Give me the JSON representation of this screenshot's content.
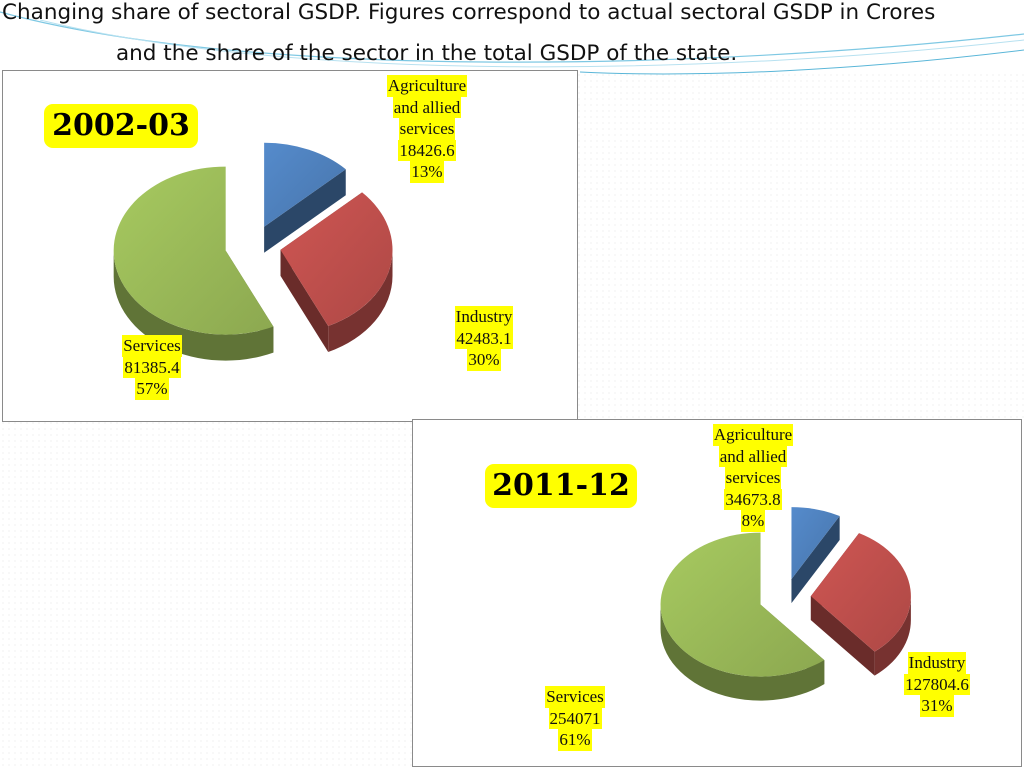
{
  "page": {
    "title_line1": "Changing share of sectoral GSDP. Figures correspond to actual sectoral GSDP in Crores",
    "title_line2": "and the share of the sector in the total GSDP of the state."
  },
  "colors": {
    "agriculture": "#4f81bd",
    "industry": "#c0504d",
    "services": "#9bbb59",
    "highlight": "#ffff00"
  },
  "chart_data": [
    {
      "type": "pie",
      "title": "2002-03",
      "unit": "Crores",
      "slices": [
        {
          "label_lines": [
            "Agriculture",
            "and allied",
            "services"
          ],
          "value": "18426.6",
          "percent": "13%",
          "share": 13
        },
        {
          "label_lines": [
            "Industry"
          ],
          "value": "42483.1",
          "percent": "30%",
          "share": 30
        },
        {
          "label_lines": [
            "Services"
          ],
          "value": "81385.4",
          "percent": "57%",
          "share": 57
        }
      ]
    },
    {
      "type": "pie",
      "title": "2011-12",
      "unit": "Crores",
      "slices": [
        {
          "label_lines": [
            "Agriculture",
            "and allied",
            "services"
          ],
          "value": "34673.8",
          "percent": "8%",
          "share": 8
        },
        {
          "label_lines": [
            "Industry"
          ],
          "value": "127804.6",
          "percent": "31%",
          "share": 31
        },
        {
          "label_lines": [
            "Services"
          ],
          "value": "254071",
          "percent": "61%",
          "share": 61
        }
      ]
    }
  ]
}
